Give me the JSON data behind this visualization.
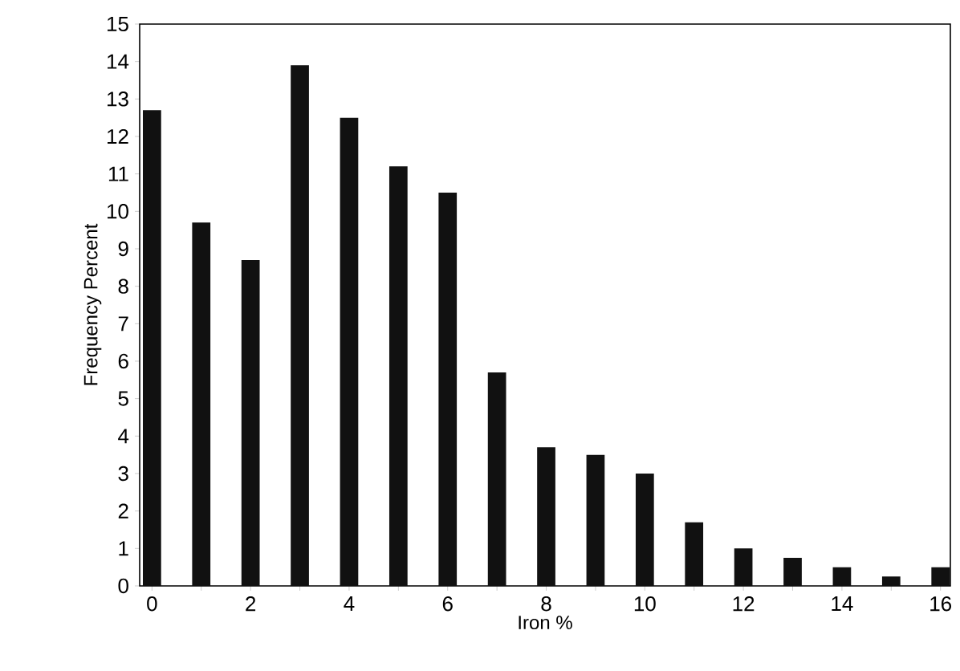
{
  "chart_data": {
    "type": "bar",
    "xlabel": "Iron %",
    "ylabel": "Frequency Percent",
    "x": [
      0,
      1,
      2,
      3,
      4,
      5,
      6,
      7,
      8,
      9,
      10,
      11,
      12,
      13,
      14,
      15,
      16
    ],
    "values": [
      12.7,
      9.7,
      8.7,
      13.9,
      12.5,
      11.2,
      10.5,
      5.7,
      3.7,
      3.5,
      3.0,
      1.7,
      1.0,
      0.75,
      0.5,
      0.25,
      0.5
    ],
    "color": "#111111",
    "xlim": [
      -0.25,
      16.2
    ],
    "ylim": [
      0,
      15
    ],
    "xticks": [
      0,
      {
        "value": 1,
        "label": null
      },
      2,
      {
        "value": 3,
        "label": null
      },
      4,
      {
        "value": 5,
        "label": null
      },
      6,
      {
        "value": 7,
        "label": null
      },
      8,
      {
        "value": 9,
        "label": null
      },
      10,
      {
        "value": 11,
        "label": null
      },
      12,
      {
        "value": 13,
        "label": null
      },
      14,
      {
        "value": 15,
        "label": null
      },
      16
    ],
    "yticks": [
      0,
      1,
      2,
      3,
      4,
      5,
      6,
      7,
      8,
      9,
      10,
      11,
      12,
      13,
      14,
      15
    ]
  }
}
